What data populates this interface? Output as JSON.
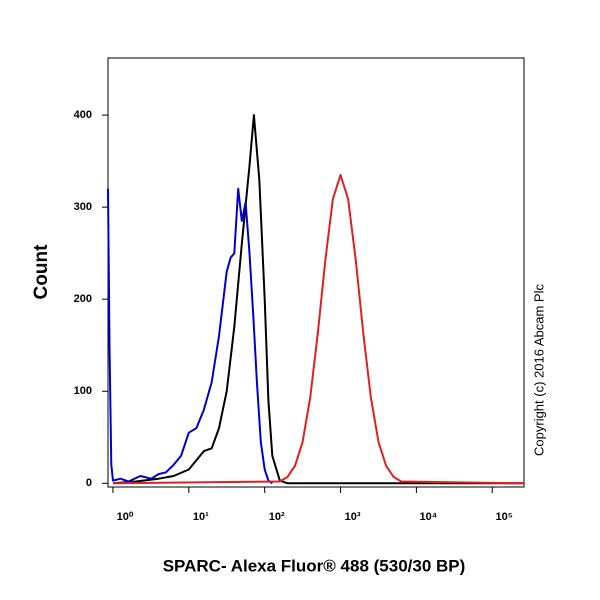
{
  "chart_data": {
    "type": "line",
    "ylabel": "Count",
    "xlabel": "SPARC- Alexa Fluor® 488 (530/30 BP)",
    "annotation": "Copyright (c) 2016 Abcam Plc",
    "log_x": true,
    "xlim": [
      0.86,
      262144
    ],
    "ylim": [
      -4,
      462
    ],
    "xticks": [
      {
        "value": 1,
        "label": "10⁰"
      },
      {
        "value": 10,
        "label": "10¹"
      },
      {
        "value": 100,
        "label": "10²"
      },
      {
        "value": 1000,
        "label": "10³"
      },
      {
        "value": 10000,
        "label": "10⁴"
      },
      {
        "value": 100000,
        "label": "10⁵"
      }
    ],
    "yticks": [
      0,
      100,
      200,
      300,
      400
    ],
    "series": [
      {
        "color": "#000000",
        "x": [
          1,
          2,
          4,
          6.3,
          10,
          12.6,
          15.8,
          20,
          25,
          31.6,
          39.8,
          50,
          63,
          72,
          85,
          100,
          112,
          126,
          158,
          200,
          262144
        ],
        "values": [
          0,
          2,
          5,
          8,
          15,
          25,
          35,
          38,
          60,
          100,
          170,
          260,
          345,
          400,
          330,
          200,
          90,
          30,
          3,
          0,
          0
        ]
      },
      {
        "color": "#0000cc",
        "x": [
          0.86,
          0.9,
          0.95,
          1,
          1.26,
          1.6,
          2.3,
          3.2,
          4,
          5,
          6.3,
          7.9,
          10,
          12.6,
          15.8,
          20,
          25,
          31.6,
          35.5,
          39.8,
          44.7,
          50,
          56,
          63,
          71,
          79,
          89,
          100,
          112,
          126
        ],
        "values": [
          320,
          150,
          20,
          3,
          5,
          2,
          8,
          5,
          10,
          12,
          20,
          30,
          55,
          60,
          80,
          110,
          160,
          230,
          245,
          250,
          320,
          285,
          305,
          250,
          180,
          110,
          45,
          15,
          3,
          0
        ]
      },
      {
        "color": "#e02020",
        "x": [
          1,
          158,
          200,
          251,
          316,
          398,
          501,
          631,
          794,
          1000,
          1259,
          1585,
          1995,
          2512,
          3162,
          3981,
          5012,
          6310,
          262144
        ],
        "values": [
          0,
          2,
          7,
          19,
          45,
          93,
          163,
          243,
          309,
          335,
          309,
          243,
          163,
          93,
          45,
          19,
          7,
          2,
          0
        ]
      }
    ]
  }
}
